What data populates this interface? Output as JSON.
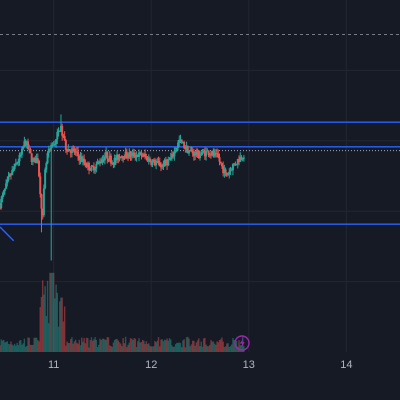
{
  "chart_data": {
    "type": "candlestick",
    "timeframe_axis": {
      "ticks": [
        {
          "label": "11",
          "x": 11.0
        },
        {
          "label": "12",
          "x": 12.0
        },
        {
          "label": "13",
          "x": 13.0
        },
        {
          "label": "14",
          "x": 14.0
        }
      ],
      "xlim": [
        10.45,
        14.55
      ]
    },
    "price_axis": {
      "ylim": [
        0,
        100
      ],
      "visible_labels": false
    },
    "grid": true,
    "horizontal_levels": [
      {
        "y": 65.3,
        "style": "solid",
        "color": "#2962ff"
      },
      {
        "y": 58.3,
        "style": "solid",
        "color": "#2962ff"
      },
      {
        "y": 57.2,
        "style": "dotted",
        "color": "#9aa6c4"
      },
      {
        "y": 36.3,
        "style": "solid",
        "color": "#2962ff"
      }
    ],
    "top_dashed_level": {
      "y": 90.2,
      "color": "#787b86"
    },
    "ray": {
      "from": [
        10.45,
        35.5
      ],
      "to": [
        10.59,
        31.6
      ],
      "color": "#2962ff"
    },
    "candles": [],
    "volume_max": 100
  },
  "colors": {
    "background": "#161a25",
    "grid": "#232632",
    "up": "#26a69a",
    "down": "#ef5350",
    "level": "#2962ff",
    "axis_text": "#b2b5be"
  },
  "indicator_badge": {
    "icon": "lightning-icon",
    "color": "#9c27b0"
  }
}
